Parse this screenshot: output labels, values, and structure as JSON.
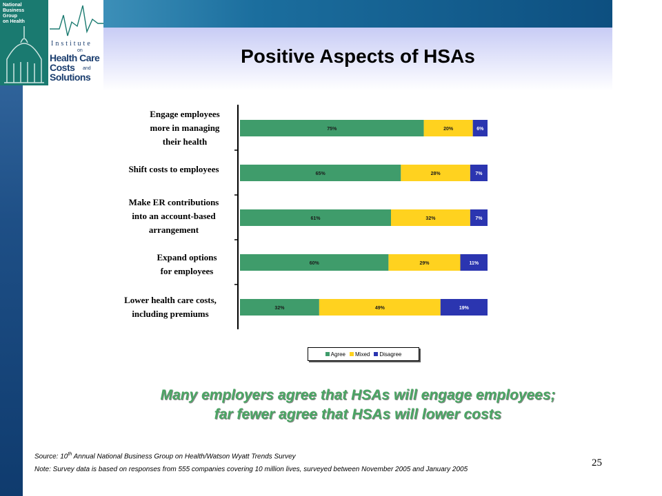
{
  "logo": {
    "org": "National\nBusiness\nGroup\non Health",
    "institute": "Institute",
    "on": "on",
    "health_care": "Health Care",
    "costs": "Costs",
    "and": "and",
    "solutions": "Solutions"
  },
  "slide": {
    "title": "Positive Aspects of HSAs",
    "callout_line1": "Many employers agree that HSAs will engage employees;",
    "callout_line2": "far fewer agree that HSAs will lower costs",
    "source_prefix": "Source: 10",
    "source_sup": "th",
    "source_rest": " Annual National Business Group on Health/Watson Wyatt Trends Survey",
    "note": "Note: Survey data is based on responses from 555 companies covering 10 million lives, surveyed between November 2005 and January 2005",
    "page_number": "25"
  },
  "chart_data": {
    "type": "bar",
    "orientation": "horizontal",
    "stacked": true,
    "categories": [
      "Engage employees\nmore in managing\ntheir health",
      "Shift costs to employees",
      "Make ER contributions\ninto an account-based\narrangement",
      "Expand options\nfor employees",
      "Lower health care costs,\nincluding premiums"
    ],
    "series": [
      {
        "name": "Agree",
        "values": [
          75,
          65,
          61,
          60,
          32
        ],
        "labels": [
          "75%",
          "65%",
          "61%",
          "60%",
          "32%"
        ],
        "color": "#3f9c6b"
      },
      {
        "name": "Mixed",
        "values": [
          20,
          28,
          32,
          29,
          49
        ],
        "labels": [
          "20%",
          "28%",
          "32%",
          "29%",
          "49%"
        ],
        "color": "#ffd21f"
      },
      {
        "name": "Disagree",
        "values": [
          6,
          7,
          7,
          11,
          19
        ],
        "labels": [
          "6%",
          "7%",
          "7%",
          "11%",
          "19%"
        ],
        "color": "#2b35b0"
      }
    ],
    "xlim": [
      0,
      100
    ],
    "grid": false,
    "legend": "bottom"
  }
}
